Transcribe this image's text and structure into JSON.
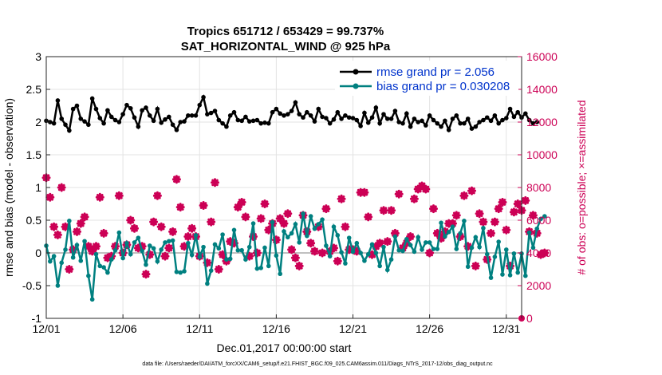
{
  "chart_data": {
    "type": "line",
    "title": "Tropics 651712 / 653429 = 99.737%",
    "subtitle": "SAT_HORIZONTAL_WIND @ 925 hPa",
    "xlabel": "Dec.01,2017 00:00:00 start",
    "ylabel_left": "rmse and bias (model - observation)",
    "ylabel_right": "# of obs: o=possible; ×=assimilated",
    "footer": "data file: /Users/raeder/DAI/ATM_forcXX/CAM6_setup/f.e21.FHIST_BGC.f09_025.CAM6assim.011/Diags_NTrS_2017-12/obs_diag_output.nc",
    "xlim": [
      0,
      31
    ],
    "ylim_left": [
      -1,
      3
    ],
    "ylim_right": [
      0,
      16000
    ],
    "x_ticks": [
      {
        "value": 0,
        "label": "12/01"
      },
      {
        "value": 5,
        "label": "12/06"
      },
      {
        "value": 10,
        "label": "12/11"
      },
      {
        "value": 15,
        "label": "12/16"
      },
      {
        "value": 20,
        "label": "12/21"
      },
      {
        "value": 25,
        "label": "12/26"
      },
      {
        "value": 30,
        "label": "12/31"
      }
    ],
    "y_ticks_left": [
      "-1",
      "-0.5",
      "0",
      "0.5",
      "1",
      "1.5",
      "2",
      "2.5",
      "3"
    ],
    "y_ticks_right": [
      "0",
      "2000",
      "4000",
      "6000",
      "8000",
      "10000",
      "12000",
      "14000",
      "16000"
    ],
    "colors": {
      "rmse": "#000000",
      "bias": "#008080",
      "obs": "#cc0055",
      "zero": "#c0c0c0",
      "legend_text": "#0033cc"
    },
    "legend": [
      {
        "name": "rmse grand pr = 2.056",
        "color": "#000000"
      },
      {
        "name": "bias grand pr = 0.030208",
        "color": "#008080"
      }
    ],
    "step": 0.25,
    "series": [
      {
        "name": "rmse",
        "axis": "left",
        "values": [
          2.02,
          2.0,
          1.98,
          2.33,
          2.05,
          1.96,
          1.87,
          2.2,
          2.25,
          2.05,
          2.01,
          1.96,
          2.36,
          2.2,
          2.06,
          1.98,
          2.18,
          2.08,
          2.03,
          2.0,
          2.12,
          2.26,
          2.21,
          2.07,
          1.93,
          2.18,
          2.22,
          2.1,
          2.02,
          2.2,
          1.99,
          2.04,
          2.08,
          1.96,
          1.88,
          2.0,
          2.01,
          2.1,
          2.1,
          2.1,
          2.26,
          2.38,
          2.12,
          2.14,
          2.17,
          2.03,
          1.98,
          1.93,
          2.1,
          2.15,
          2.03,
          2.02,
          2.08,
          2.01,
          2.02,
          2.03,
          1.98,
          1.99,
          1.98,
          2.15,
          2.2,
          2.13,
          2.1,
          2.12,
          2.17,
          2.3,
          2.12,
          2.07,
          2.15,
          2.1,
          2.01,
          2.2,
          2.08,
          2.06,
          1.98,
          2.04,
          2.15,
          2.05,
          2.1,
          2.07,
          2.06,
          2.03,
          1.94,
          2.14,
          1.99,
          2.07,
          2.22,
          1.98,
          2.12,
          2.05,
          2.05,
          2.17,
          2.0,
          1.98,
          2.13,
          1.93,
          2.05,
          2.0,
          2.02,
          1.95,
          2.1,
          2.03,
          1.98,
          1.93,
          2.02,
          1.88,
          2.05,
          2.1,
          1.98,
          1.98,
          2.05,
          1.9,
          1.93,
          2.0,
          2.03,
          2.07,
          2.02,
          2.1,
          1.98,
          2.03,
          2.06,
          2.2,
          2.08,
          2.15,
          2.07,
          2.13,
          2.03,
          1.98,
          2.0
        ]
      },
      {
        "name": "bias",
        "axis": "left",
        "values": [
          0.11,
          -0.13,
          -0.05,
          -0.5,
          -0.15,
          0.05,
          0.49,
          -0.07,
          0.12,
          -0.12,
          0.18,
          -0.35,
          -0.71,
          -0.02,
          -0.2,
          -0.22,
          -0.3,
          -0.1,
          0.04,
          0.31,
          -0.08,
          0.15,
          -0.02,
          0.16,
          0.23,
          0.03,
          -0.18,
          0.11,
          0.07,
          -0.13,
          0.05,
          0.16,
          0.18,
          0.19,
          -0.29,
          -0.3,
          -0.28,
          0.15,
          -0.03,
          0.27,
          -0.06,
          0.09,
          -0.47,
          -0.27,
          0.13,
          0.07,
          0.28,
          -0.1,
          -0.09,
          0.35,
          0.04,
          0.04,
          -0.1,
          0.09,
          0.45,
          -0.24,
          -0.23,
          0.08,
          -0.2,
          0.47,
          -0.04,
          -0.32,
          0.33,
          0.24,
          0.3,
          0.44,
          0.16,
          0.6,
          0.26,
          0.56,
          0.37,
          0.44,
          0.51,
          0.11,
          -0.05,
          0.4,
          0.27,
          0.01,
          -0.16,
          0.23,
          0.02,
          0.15,
          0.0,
          -0.12,
          -0.02,
          0.13,
          0.0,
          -0.2,
          0.09,
          -0.26,
          -0.1,
          0.25,
          0.04,
          0.03,
          0.21,
          0.12,
          0.02,
          0.24,
          0.05,
          0.16,
          0.16,
          0.06,
          0.06,
          0.46,
          0.25,
          0.32,
          0.4,
          0.06,
          0.3,
          0.49,
          -0.21,
          0.08,
          0.24,
          0.09,
          0.38,
          -0.02,
          -0.38,
          -0.06,
          0.17,
          -0.33,
          0.05,
          -0.34,
          -0.01,
          -0.3,
          -0.01,
          -0.35,
          0.31,
          0.08,
          0.37,
          0.52,
          0.56
        ]
      },
      {
        "name": "obs possible",
        "axis": "right",
        "values": [
          8600,
          7400,
          5600,
          5100,
          8000,
          5600,
          3000,
          4200,
          5300,
          5800,
          6200,
          4400,
          4100,
          4400,
          7400,
          5200,
          3700,
          3800,
          4400,
          7500,
          4000,
          4500,
          6000,
          5500,
          4300,
          4400,
          2700,
          3900,
          5900,
          7500,
          5600,
          3800,
          4300,
          5300,
          8500,
          6800,
          4400,
          5000,
          5500,
          5000,
          3800,
          6900,
          3400,
          5900,
          8300,
          3000,
          3900,
          3500,
          4700,
          4600,
          6800,
          7100,
          6200,
          3800,
          5000,
          4000,
          6100,
          7000,
          5400,
          5800,
          4800,
          6100,
          5800,
          6400,
          4200,
          3700,
          3200,
          6300,
          5300,
          4600,
          4100,
          5600,
          4000,
          6700,
          4100,
          4300,
          3500,
          7300,
          5600,
          4200,
          4200,
          4100,
          7700,
          7700,
          6200,
          3900,
          4400,
          4600,
          6600,
          4700,
          6600,
          5200,
          7600,
          4300,
          4600,
          5000,
          7300,
          7900,
          8100,
          7900,
          4000,
          6700,
          5200,
          4900,
          5300,
          5800,
          5800,
          6300,
          5000,
          7500,
          4400,
          7800,
          3200,
          6400,
          5900,
          3600,
          5200,
          5900,
          6700,
          7100,
          5400,
          3200,
          6500,
          7000,
          6600,
          7200,
          5300,
          6300,
          5200,
          3900,
          4000
        ]
      }
    ]
  }
}
